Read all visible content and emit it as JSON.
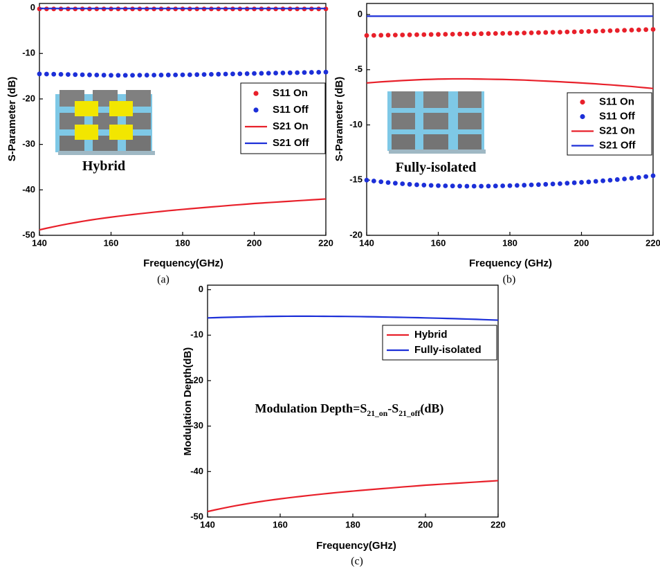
{
  "chart_data": [
    {
      "type": "line",
      "panel_label": "(a)",
      "x_label": "Frequency(GHz)",
      "y_label": "S-Parameter (dB)",
      "annotation": [
        "Hybrid"
      ],
      "xlim": [
        140,
        220
      ],
      "xticks": [
        140,
        160,
        180,
        200,
        220
      ],
      "ylim": [
        -50,
        1
      ],
      "yticks": [
        -50,
        -40,
        -30,
        -20,
        -10,
        0
      ],
      "x": [
        140,
        142,
        144,
        146,
        148,
        150,
        152,
        154,
        156,
        158,
        160,
        162,
        164,
        166,
        168,
        170,
        172,
        174,
        176,
        178,
        180,
        182,
        184,
        186,
        188,
        190,
        192,
        194,
        196,
        198,
        200,
        202,
        204,
        206,
        208,
        210,
        212,
        214,
        216,
        218,
        220
      ],
      "series": [
        {
          "name": "S11 On",
          "color": "#e8202a",
          "style": "dots",
          "values": [
            -0.2,
            -0.2,
            -0.2,
            -0.2,
            -0.2,
            -0.2,
            -0.2,
            -0.2,
            -0.2,
            -0.2,
            -0.2,
            -0.2,
            -0.2,
            -0.2,
            -0.2,
            -0.2,
            -0.2,
            -0.2,
            -0.2,
            -0.2,
            -0.2,
            -0.2,
            -0.2,
            -0.2,
            -0.2,
            -0.2,
            -0.2,
            -0.2,
            -0.2,
            -0.2,
            -0.2,
            -0.2,
            -0.2,
            -0.2,
            -0.2,
            -0.2,
            -0.2,
            -0.2,
            -0.2,
            -0.2,
            -0.2
          ]
        },
        {
          "name": "S11 Off",
          "color": "#1c2fd8",
          "style": "dots",
          "values": [
            -14.5,
            -14.53,
            -14.56,
            -14.59,
            -14.62,
            -14.65,
            -14.68,
            -14.71,
            -14.74,
            -14.77,
            -14.8,
            -14.8,
            -14.8,
            -14.79,
            -14.78,
            -14.77,
            -14.76,
            -14.75,
            -14.73,
            -14.72,
            -14.7,
            -14.68,
            -14.65,
            -14.62,
            -14.59,
            -14.56,
            -14.53,
            -14.5,
            -14.47,
            -14.44,
            -14.4,
            -14.37,
            -14.34,
            -14.31,
            -14.28,
            -14.25,
            -14.22,
            -14.19,
            -14.16,
            -14.13,
            -14.1
          ]
        },
        {
          "name": "S21 On",
          "color": "#e8202a",
          "style": "line",
          "values": [
            -48.8,
            -48.44,
            -48.1,
            -47.78,
            -47.48,
            -47.2,
            -46.93,
            -46.67,
            -46.43,
            -46.21,
            -46.0,
            -45.8,
            -45.61,
            -45.43,
            -45.25,
            -45.08,
            -44.91,
            -44.75,
            -44.59,
            -44.44,
            -44.3,
            -44.16,
            -44.02,
            -43.89,
            -43.76,
            -43.63,
            -43.5,
            -43.37,
            -43.25,
            -43.13,
            -43.0,
            -42.9,
            -42.8,
            -42.7,
            -42.6,
            -42.5,
            -42.4,
            -42.3,
            -42.2,
            -42.1,
            -42.0
          ]
        },
        {
          "name": "S21 Off",
          "color": "#1c2fd8",
          "style": "line",
          "values": [
            -0.1,
            -0.1,
            -0.1,
            -0.1,
            -0.1,
            -0.1,
            -0.1,
            -0.1,
            -0.1,
            -0.1,
            -0.1,
            -0.1,
            -0.1,
            -0.1,
            -0.1,
            -0.1,
            -0.1,
            -0.1,
            -0.1,
            -0.1,
            -0.1,
            -0.1,
            -0.1,
            -0.1,
            -0.1,
            -0.1,
            -0.1,
            -0.1,
            -0.1,
            -0.1,
            -0.1,
            -0.1,
            -0.1,
            -0.1,
            -0.1,
            -0.1,
            -0.1,
            -0.1,
            -0.1,
            -0.1,
            -0.1
          ]
        }
      ]
    },
    {
      "type": "line",
      "panel_label": "(b)",
      "x_label": "Frequency (GHz)",
      "y_label": "S-Parameter (dB)",
      "annotation": [
        "Fully-isolated"
      ],
      "xlim": [
        140,
        220
      ],
      "xticks": [
        140,
        160,
        180,
        200,
        220
      ],
      "ylim": [
        -20,
        1
      ],
      "yticks": [
        -20,
        -15,
        -10,
        -5,
        0
      ],
      "x": [
        140,
        142,
        144,
        146,
        148,
        150,
        152,
        154,
        156,
        158,
        160,
        162,
        164,
        166,
        168,
        170,
        172,
        174,
        176,
        178,
        180,
        182,
        184,
        186,
        188,
        190,
        192,
        194,
        196,
        198,
        200,
        202,
        204,
        206,
        208,
        210,
        212,
        214,
        216,
        218,
        220
      ],
      "series": [
        {
          "name": "S11 On",
          "color": "#e8202a",
          "style": "dots",
          "values": [
            -1.9,
            -1.89,
            -1.88,
            -1.87,
            -1.86,
            -1.85,
            -1.84,
            -1.83,
            -1.82,
            -1.81,
            -1.8,
            -1.79,
            -1.78,
            -1.77,
            -1.76,
            -1.75,
            -1.74,
            -1.73,
            -1.72,
            -1.71,
            -1.7,
            -1.69,
            -1.67,
            -1.66,
            -1.64,
            -1.63,
            -1.61,
            -1.6,
            -1.58,
            -1.57,
            -1.55,
            -1.53,
            -1.51,
            -1.49,
            -1.47,
            -1.45,
            -1.43,
            -1.41,
            -1.39,
            -1.37,
            -1.35
          ]
        },
        {
          "name": "S11 Off",
          "color": "#1c2fd8",
          "style": "dots",
          "values": [
            -15.0,
            -15.08,
            -15.15,
            -15.22,
            -15.28,
            -15.33,
            -15.38,
            -15.42,
            -15.45,
            -15.48,
            -15.5,
            -15.52,
            -15.53,
            -15.54,
            -15.55,
            -15.55,
            -15.55,
            -15.54,
            -15.53,
            -15.52,
            -15.5,
            -15.48,
            -15.46,
            -15.43,
            -15.41,
            -15.38,
            -15.35,
            -15.32,
            -15.28,
            -15.24,
            -15.2,
            -15.16,
            -15.11,
            -15.06,
            -15.01,
            -14.95,
            -14.89,
            -14.83,
            -14.76,
            -14.68,
            -14.6
          ]
        },
        {
          "name": "S21 On",
          "color": "#e8202a",
          "style": "line",
          "values": [
            -6.2,
            -6.15,
            -6.1,
            -6.06,
            -6.02,
            -5.98,
            -5.95,
            -5.92,
            -5.89,
            -5.87,
            -5.85,
            -5.84,
            -5.83,
            -5.83,
            -5.83,
            -5.84,
            -5.85,
            -5.86,
            -5.87,
            -5.88,
            -5.9,
            -5.92,
            -5.94,
            -5.97,
            -6.0,
            -6.03,
            -6.06,
            -6.09,
            -6.13,
            -6.16,
            -6.2,
            -6.24,
            -6.28,
            -6.33,
            -6.37,
            -6.42,
            -6.47,
            -6.52,
            -6.58,
            -6.64,
            -6.7
          ]
        },
        {
          "name": "S21 Off",
          "color": "#1c2fd8",
          "style": "line",
          "values": [
            -0.15,
            -0.15,
            -0.15,
            -0.15,
            -0.15,
            -0.15,
            -0.15,
            -0.15,
            -0.15,
            -0.15,
            -0.15,
            -0.15,
            -0.15,
            -0.15,
            -0.15,
            -0.15,
            -0.15,
            -0.15,
            -0.15,
            -0.15,
            -0.15,
            -0.15,
            -0.15,
            -0.15,
            -0.15,
            -0.15,
            -0.15,
            -0.15,
            -0.15,
            -0.15,
            -0.15,
            -0.15,
            -0.15,
            -0.15,
            -0.15,
            -0.15,
            -0.15,
            -0.15,
            -0.15,
            -0.15,
            -0.15
          ]
        }
      ]
    },
    {
      "type": "line",
      "panel_label": "(c)",
      "x_label": "Frequency(GHz)",
      "y_label": "Modulation Depth(dB)",
      "annotation": [
        "Modulation Depth=S",
        "21_on",
        "-S",
        "21_off",
        "(dB)"
      ],
      "xlim": [
        140,
        220
      ],
      "xticks": [
        140,
        160,
        180,
        200,
        220
      ],
      "ylim": [
        -50,
        1
      ],
      "yticks": [
        -50,
        -40,
        -30,
        -20,
        -10,
        0
      ],
      "x": [
        140,
        142,
        144,
        146,
        148,
        150,
        152,
        154,
        156,
        158,
        160,
        162,
        164,
        166,
        168,
        170,
        172,
        174,
        176,
        178,
        180,
        182,
        184,
        186,
        188,
        190,
        192,
        194,
        196,
        198,
        200,
        202,
        204,
        206,
        208,
        210,
        212,
        214,
        216,
        218,
        220
      ],
      "series": [
        {
          "name": "Hybrid",
          "color": "#e8202a",
          "style": "line",
          "values": [
            -48.8,
            -48.44,
            -48.1,
            -47.78,
            -47.48,
            -47.2,
            -46.93,
            -46.67,
            -46.43,
            -46.21,
            -46.0,
            -45.8,
            -45.61,
            -45.43,
            -45.25,
            -45.08,
            -44.91,
            -44.75,
            -44.59,
            -44.44,
            -44.3,
            -44.16,
            -44.02,
            -43.89,
            -43.76,
            -43.63,
            -43.5,
            -43.37,
            -43.25,
            -43.13,
            -43.0,
            -42.9,
            -42.8,
            -42.7,
            -42.6,
            -42.5,
            -42.4,
            -42.3,
            -42.2,
            -42.1,
            -42.0
          ]
        },
        {
          "name": "Fully-isolated",
          "color": "#1c2fd8",
          "style": "line",
          "values": [
            -6.2,
            -6.15,
            -6.1,
            -6.06,
            -6.02,
            -5.98,
            -5.95,
            -5.92,
            -5.89,
            -5.87,
            -5.85,
            -5.84,
            -5.83,
            -5.83,
            -5.83,
            -5.84,
            -5.85,
            -5.86,
            -5.87,
            -5.88,
            -5.9,
            -5.92,
            -5.94,
            -5.97,
            -6.0,
            -6.03,
            -6.06,
            -6.09,
            -6.13,
            -6.16,
            -6.2,
            -6.24,
            -6.28,
            -6.33,
            -6.37,
            -6.42,
            -6.47,
            -6.52,
            -6.58,
            -6.64,
            -6.7
          ]
        }
      ]
    }
  ]
}
